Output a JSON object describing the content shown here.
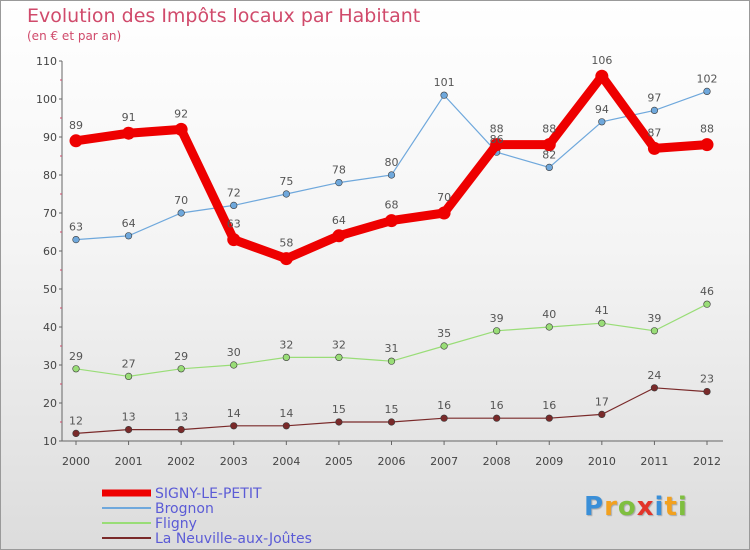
{
  "header": {
    "title": "Evolution des Impôts locaux par Habitant",
    "subtitle": "(en € et par an)"
  },
  "logo": {
    "letters": [
      "P",
      "r",
      "o",
      "x",
      "i",
      "t",
      "i"
    ],
    "colors": [
      "#3a8fd8",
      "#f2a11f",
      "#7fbf3f",
      "#e2342a",
      "#3a8fd8",
      "#f2a11f",
      "#7fbf3f"
    ]
  },
  "chart_data": {
    "type": "line",
    "title": "Evolution des Impôts locaux par Habitant",
    "subtitle": "(en € et par an)",
    "x": [
      "2000",
      "2001",
      "2002",
      "2003",
      "2004",
      "2005",
      "2006",
      "2007",
      "2008",
      "2009",
      "2010",
      "2011",
      "2012"
    ],
    "ylim": [
      10,
      110
    ],
    "yticks": [
      10,
      20,
      30,
      40,
      50,
      60,
      70,
      80,
      90,
      100,
      110
    ],
    "grid": false,
    "legend_position": "bottom-left",
    "series": [
      {
        "name": "SIGNY-LE-PETIT",
        "color": "#ee0000",
        "emphasis": true,
        "values": [
          89,
          91,
          92,
          63,
          58,
          64,
          68,
          70,
          88,
          88,
          106,
          87,
          88
        ]
      },
      {
        "name": "Brognon",
        "color": "#6fa8dc",
        "emphasis": false,
        "values": [
          63,
          64,
          70,
          72,
          75,
          78,
          80,
          101,
          86,
          82,
          94,
          97,
          102
        ]
      },
      {
        "name": "Fligny",
        "color": "#99dd77",
        "emphasis": false,
        "values": [
          29,
          27,
          29,
          30,
          32,
          32,
          31,
          35,
          39,
          40,
          41,
          39,
          46
        ]
      },
      {
        "name": "La Neuville-aux-Joûtes",
        "color": "#7a2a2a",
        "emphasis": false,
        "values": [
          12,
          13,
          13,
          14,
          14,
          15,
          15,
          16,
          16,
          16,
          17,
          24,
          23
        ]
      }
    ]
  }
}
